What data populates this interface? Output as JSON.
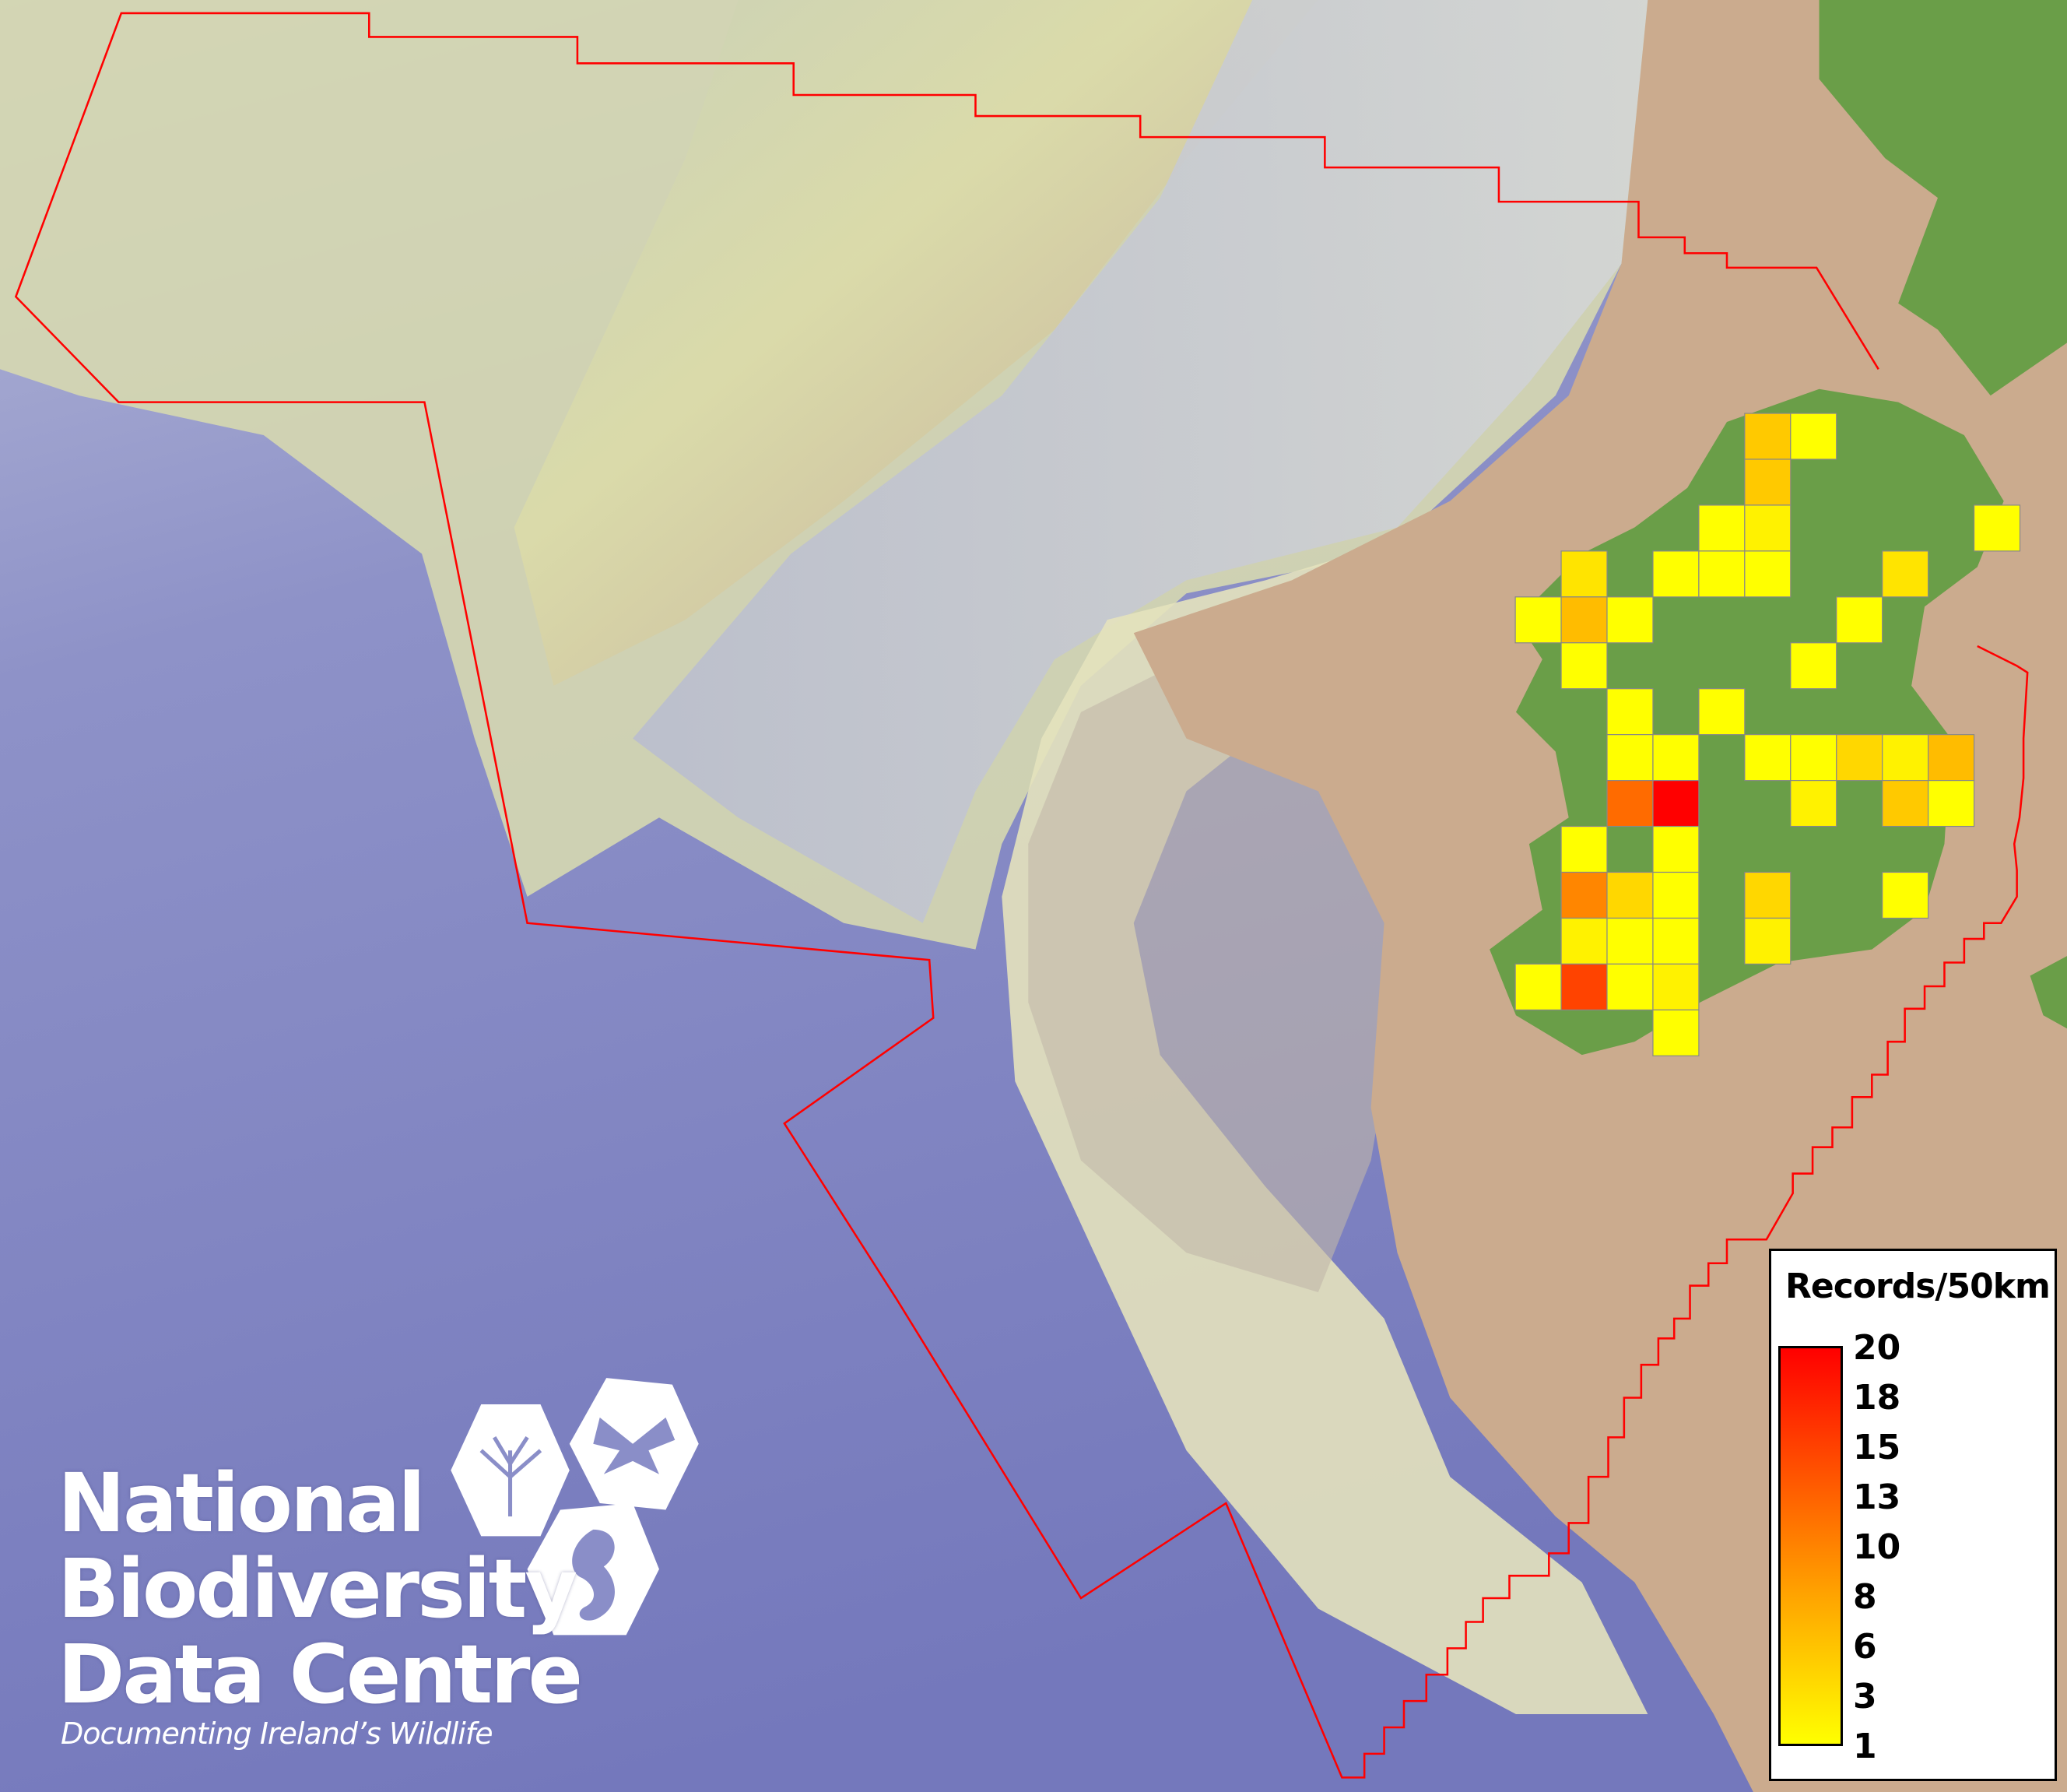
{
  "legend": {
    "title": "Records/50km",
    "min": 1,
    "max": 20,
    "ticks": [
      "20",
      "18",
      "15",
      "13",
      "10",
      "8",
      "6",
      "3",
      "1"
    ],
    "color_low": "#ffff00",
    "color_mid": "#ffa500",
    "color_high": "#ff0000"
  },
  "logo": {
    "line1": "National",
    "line2": "Biodiversity",
    "line3": "Data Centre",
    "tagline": "Documenting Ireland’s Wildlife"
  },
  "colors": {
    "deep_sea": "#7c80c0",
    "shelf": "#dcdca8",
    "land_sea": "#c9a98c",
    "land": "#6a9e48",
    "boundary": "#ff0000",
    "cell_border": "#888888"
  },
  "grid_cells": [
    {
      "col": 5,
      "row": 0,
      "value": 5
    },
    {
      "col": 6,
      "row": 0,
      "value": 1
    },
    {
      "col": 5,
      "row": 1,
      "value": 5
    },
    {
      "col": 4,
      "row": 2,
      "value": 1
    },
    {
      "col": 5,
      "row": 2,
      "value": 2
    },
    {
      "col": 10,
      "row": 2,
      "value": 1
    },
    {
      "col": 1,
      "row": 3,
      "value": 3
    },
    {
      "col": 3,
      "row": 3,
      "value": 1
    },
    {
      "col": 4,
      "row": 3,
      "value": 1
    },
    {
      "col": 5,
      "row": 3,
      "value": 1
    },
    {
      "col": 8,
      "row": 3,
      "value": 3
    },
    {
      "col": 0,
      "row": 4,
      "value": 1
    },
    {
      "col": 1,
      "row": 4,
      "value": 6
    },
    {
      "col": 2,
      "row": 4,
      "value": 1
    },
    {
      "col": 7,
      "row": 4,
      "value": 1
    },
    {
      "col": 1,
      "row": 5,
      "value": 1
    },
    {
      "col": 6,
      "row": 5,
      "value": 1
    },
    {
      "col": 2,
      "row": 6,
      "value": 1
    },
    {
      "col": 4,
      "row": 6,
      "value": 1
    },
    {
      "col": 2,
      "row": 7,
      "value": 1
    },
    {
      "col": 3,
      "row": 7,
      "value": 1
    },
    {
      "col": 5,
      "row": 7,
      "value": 1
    },
    {
      "col": 6,
      "row": 7,
      "value": 1
    },
    {
      "col": 7,
      "row": 7,
      "value": 4
    },
    {
      "col": 8,
      "row": 7,
      "value": 2
    },
    {
      "col": 9,
      "row": 7,
      "value": 6
    },
    {
      "col": 2,
      "row": 8,
      "value": 12
    },
    {
      "col": 3,
      "row": 8,
      "value": 20
    },
    {
      "col": 6,
      "row": 8,
      "value": 2
    },
    {
      "col": 8,
      "row": 8,
      "value": 5
    },
    {
      "col": 9,
      "row": 8,
      "value": 1
    },
    {
      "col": 1,
      "row": 9,
      "value": 1
    },
    {
      "col": 3,
      "row": 9,
      "value": 1
    },
    {
      "col": 1,
      "row": 10,
      "value": 10
    },
    {
      "col": 2,
      "row": 10,
      "value": 4
    },
    {
      "col": 3,
      "row": 10,
      "value": 1
    },
    {
      "col": 5,
      "row": 10,
      "value": 4
    },
    {
      "col": 8,
      "row": 10,
      "value": 1
    },
    {
      "col": 1,
      "row": 11,
      "value": 2
    },
    {
      "col": 2,
      "row": 11,
      "value": 1
    },
    {
      "col": 3,
      "row": 11,
      "value": 1
    },
    {
      "col": 5,
      "row": 11,
      "value": 2
    },
    {
      "col": 0,
      "row": 12,
      "value": 1
    },
    {
      "col": 1,
      "row": 12,
      "value": 15
    },
    {
      "col": 2,
      "row": 12,
      "value": 1
    },
    {
      "col": 3,
      "row": 12,
      "value": 2
    },
    {
      "col": 3,
      "row": 13,
      "value": 1
    }
  ]
}
